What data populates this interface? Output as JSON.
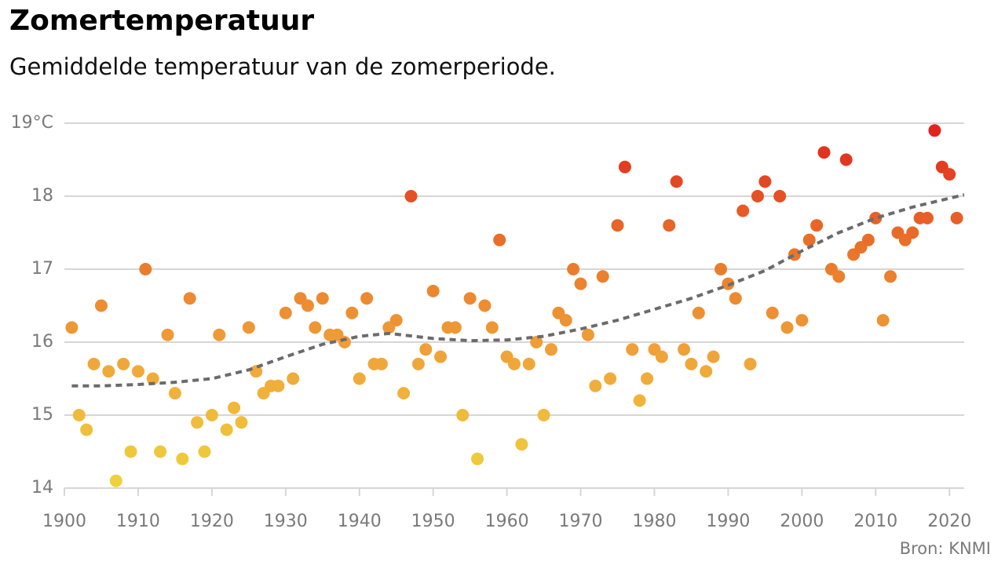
{
  "chart_data": {
    "type": "scatter",
    "title": "Zomertemperatuur",
    "subtitle": "Gemiddelde temperatuur van de zomerperiode.",
    "source": "Bron: KNMI",
    "xlim": [
      1900,
      2022
    ],
    "xticks": [
      1900,
      1910,
      1920,
      1930,
      1940,
      1950,
      1960,
      1970,
      1980,
      1990,
      2000,
      2010,
      2020
    ],
    "ylim": [
      14,
      19
    ],
    "yticks": [
      14,
      15,
      16,
      17,
      18,
      {
        "value": 19,
        "label": "19°C"
      }
    ],
    "grid": true,
    "color_scale": [
      "#efd43c",
      "#f0a83a",
      "#e9722a",
      "#e01f1c"
    ],
    "series": [
      {
        "type": "scatter",
        "x": [
          1901,
          1902,
          1903,
          1904,
          1905,
          1906,
          1907,
          1908,
          1909,
          1910,
          1911,
          1912,
          1913,
          1914,
          1915,
          1916,
          1917,
          1918,
          1919,
          1920,
          1921,
          1922,
          1923,
          1924,
          1925,
          1926,
          1927,
          1928,
          1929,
          1930,
          1931,
          1932,
          1933,
          1934,
          1935,
          1936,
          1937,
          1938,
          1939,
          1940,
          1941,
          1942,
          1943,
          1944,
          1945,
          1946,
          1947,
          1948,
          1949,
          1950,
          1951,
          1952,
          1953,
          1954,
          1955,
          1956,
          1957,
          1958,
          1959,
          1960,
          1961,
          1962,
          1963,
          1964,
          1965,
          1966,
          1967,
          1968,
          1969,
          1970,
          1971,
          1972,
          1973,
          1974,
          1975,
          1976,
          1977,
          1978,
          1979,
          1980,
          1981,
          1982,
          1983,
          1984,
          1985,
          1986,
          1987,
          1988,
          1989,
          1990,
          1991,
          1992,
          1993,
          1994,
          1995,
          1996,
          1997,
          1998,
          1999,
          2000,
          2001,
          2002,
          2003,
          2004,
          2005,
          2006,
          2007,
          2008,
          2009,
          2010,
          2011,
          2012,
          2013,
          2014,
          2015,
          2016,
          2017,
          2018,
          2019,
          2020,
          2021
        ],
        "values": [
          16.2,
          15.0,
          14.8,
          15.7,
          16.5,
          15.6,
          14.1,
          15.7,
          14.5,
          15.6,
          17.0,
          15.5,
          14.5,
          16.1,
          15.3,
          14.4,
          16.6,
          14.9,
          14.5,
          15.0,
          16.1,
          14.8,
          15.1,
          14.9,
          16.2,
          15.6,
          15.3,
          15.4,
          15.4,
          16.4,
          15.5,
          16.6,
          16.5,
          16.2,
          16.6,
          16.1,
          16.1,
          16.0,
          16.4,
          15.5,
          16.6,
          15.7,
          15.7,
          16.2,
          16.3,
          15.3,
          18.0,
          15.7,
          15.9,
          16.7,
          15.8,
          16.2,
          16.2,
          15.0,
          16.6,
          14.4,
          16.5,
          16.2,
          17.4,
          15.8,
          15.7,
          14.6,
          15.7,
          16.0,
          15.0,
          15.9,
          16.4,
          16.3,
          17.0,
          16.8,
          16.1,
          15.4,
          16.9,
          15.5,
          17.6,
          18.4,
          15.9,
          15.2,
          15.5,
          15.9,
          15.8,
          17.6,
          18.2,
          15.9,
          15.7,
          16.4,
          15.6,
          15.8,
          17.0,
          16.8,
          16.6,
          17.8,
          15.7,
          18.0,
          18.2,
          16.4,
          18.0,
          16.2,
          17.2,
          16.3,
          17.4,
          17.6,
          18.6,
          17.0,
          16.9,
          18.5,
          17.2,
          17.3,
          17.4,
          17.7,
          16.3,
          16.9,
          17.5,
          17.4,
          17.5,
          17.7,
          17.7,
          18.9,
          18.4,
          18.3,
          17.7
        ]
      },
      {
        "type": "line",
        "color": "#6b6b6b",
        "dashed": true,
        "x": [
          1901,
          1905,
          1910,
          1915,
          1920,
          1925,
          1930,
          1935,
          1940,
          1944,
          1950,
          1955,
          1960,
          1965,
          1970,
          1975,
          1980,
          1985,
          1990,
          1995,
          2000,
          2005,
          2010,
          2015,
          2022
        ],
        "values": [
          15.4,
          15.4,
          15.42,
          15.45,
          15.5,
          15.62,
          15.8,
          15.97,
          16.08,
          16.12,
          16.05,
          16.02,
          16.03,
          16.08,
          16.18,
          16.3,
          16.45,
          16.6,
          16.78,
          16.98,
          17.25,
          17.5,
          17.7,
          17.85,
          18.02
        ]
      }
    ]
  }
}
